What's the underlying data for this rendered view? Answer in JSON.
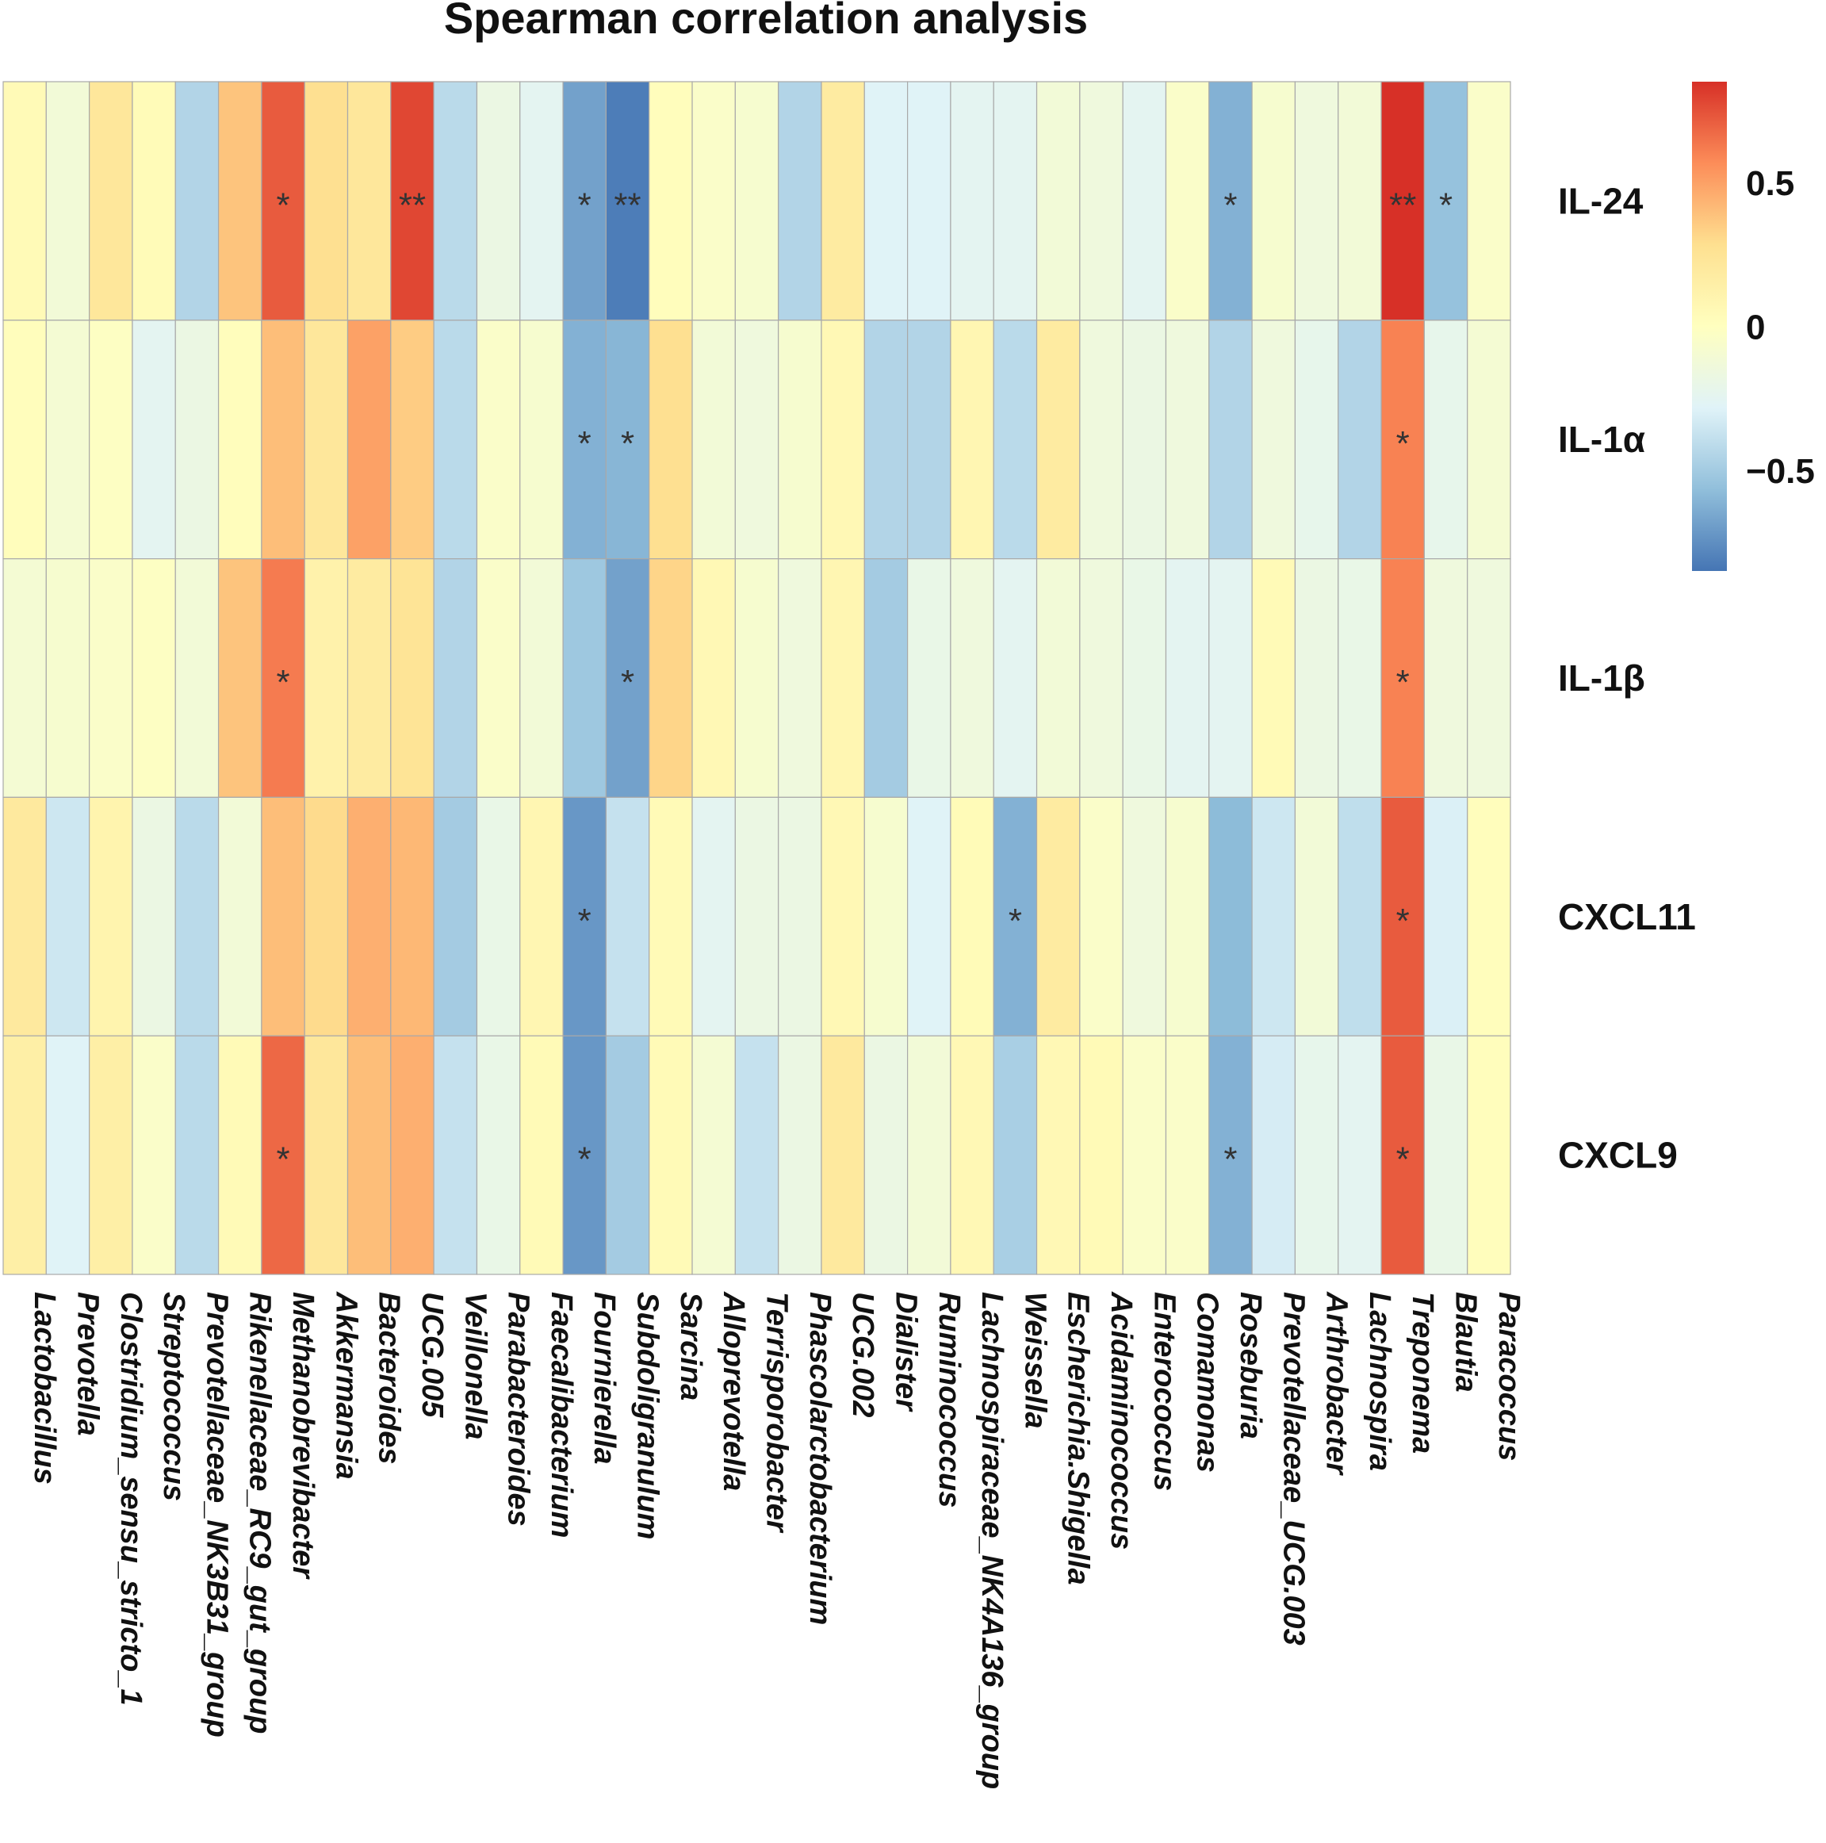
{
  "chart_data": {
    "type": "heatmap",
    "title": "Spearman correlation analysis",
    "rows": [
      "IL-24",
      "IL-1α",
      "IL-1β",
      "CXCL11",
      "CXCL9"
    ],
    "columns": [
      "Lactobacillus",
      "Prevotella",
      "Clostridium_sensu_stricto_1",
      "Streptococcus",
      "Prevotellaceae_NK3B31_group",
      "Rikenellaceae_RC9_gut_group",
      "Methanobrevibacter",
      "Akkermansia",
      "Bacteroides",
      "UCG.005",
      "Veillonella",
      "Parabacteroides",
      "Faecalibacterium",
      "Fournierella",
      "Subdoligranulum",
      "Sarcina",
      "Alloprevotella",
      "Terrisporobacter",
      "Phascolarctobacterium",
      "UCG.002",
      "Dialister",
      "Ruminococcus",
      "Lachnospiraceae_NK4A136_group",
      "Weissella",
      "Escherichia.Shigella",
      "Acidaminococcus",
      "Enterococcus",
      "Comamonas",
      "Roseburia",
      "Prevotellaceae_UCG.003",
      "Arthrobacter",
      "Lachnospira",
      "Treponema",
      "Blautia",
      "Paracoccus"
    ],
    "values": [
      [
        0.05,
        -0.12,
        0.22,
        0.04,
        -0.45,
        0.38,
        0.72,
        0.28,
        0.22,
        0.78,
        -0.42,
        -0.18,
        -0.25,
        -0.68,
        -0.82,
        0.02,
        -0.05,
        -0.08,
        -0.45,
        0.18,
        -0.28,
        -0.28,
        -0.25,
        -0.25,
        -0.12,
        -0.15,
        -0.25,
        -0.05,
        -0.62,
        -0.08,
        -0.15,
        -0.12,
        0.9,
        -0.55,
        -0.05
      ],
      [
        0.02,
        -0.1,
        -0.02,
        -0.25,
        -0.18,
        0.02,
        0.4,
        0.22,
        0.5,
        0.35,
        -0.42,
        -0.05,
        -0.08,
        -0.62,
        -0.6,
        0.28,
        -0.12,
        -0.15,
        -0.08,
        0.06,
        -0.45,
        -0.45,
        0.08,
        -0.42,
        0.18,
        -0.15,
        -0.18,
        -0.15,
        -0.45,
        -0.15,
        -0.22,
        -0.45,
        0.6,
        -0.22,
        -0.1
      ],
      [
        -0.1,
        -0.08,
        -0.05,
        -0.02,
        -0.12,
        0.38,
        0.62,
        0.12,
        0.18,
        0.25,
        -0.45,
        -0.05,
        -0.12,
        -0.52,
        -0.68,
        0.32,
        0.06,
        -0.08,
        -0.15,
        0.08,
        -0.5,
        -0.2,
        -0.15,
        -0.25,
        -0.12,
        -0.15,
        -0.2,
        -0.25,
        -0.25,
        0.05,
        -0.18,
        -0.2,
        0.6,
        -0.15,
        -0.15
      ],
      [
        0.2,
        -0.35,
        0.1,
        -0.18,
        -0.42,
        -0.12,
        0.4,
        0.3,
        0.45,
        0.42,
        -0.5,
        -0.2,
        0.08,
        -0.72,
        -0.38,
        0.05,
        -0.25,
        -0.18,
        -0.18,
        0.06,
        -0.08,
        -0.28,
        0.04,
        -0.62,
        0.18,
        -0.05,
        -0.15,
        -0.08,
        -0.58,
        -0.35,
        -0.12,
        -0.4,
        0.72,
        -0.3,
        0.02
      ],
      [
        0.15,
        -0.28,
        0.15,
        -0.05,
        -0.42,
        0.05,
        0.68,
        0.22,
        0.4,
        0.45,
        -0.38,
        -0.2,
        0.05,
        -0.72,
        -0.5,
        0.05,
        -0.1,
        -0.38,
        -0.18,
        0.2,
        -0.18,
        -0.12,
        0.06,
        -0.48,
        0.06,
        0.05,
        -0.05,
        -0.05,
        -0.62,
        -0.32,
        -0.22,
        -0.25,
        0.72,
        -0.2,
        0.02
      ]
    ],
    "significance": [
      [
        "",
        "",
        "",
        "",
        "",
        "",
        "*",
        "",
        "",
        "**",
        "",
        "",
        "",
        "*",
        "**",
        "",
        "",
        "",
        "",
        "",
        "",
        "",
        "",
        "",
        "",
        "",
        "",
        "",
        "*",
        "",
        "",
        "",
        "**",
        "*",
        ""
      ],
      [
        "",
        "",
        "",
        "",
        "",
        "",
        "",
        "",
        "",
        "",
        "",
        "",
        "",
        "*",
        "*",
        "",
        "",
        "",
        "",
        "",
        "",
        "",
        "",
        "",
        "",
        "",
        "",
        "",
        "",
        "",
        "",
        "",
        "*",
        "",
        ""
      ],
      [
        "",
        "",
        "",
        "",
        "",
        "",
        "*",
        "",
        "",
        "",
        "",
        "",
        "",
        "",
        "*",
        "",
        "",
        "",
        "",
        "",
        "",
        "",
        "",
        "",
        "",
        "",
        "",
        "",
        "",
        "",
        "",
        "",
        "*",
        "",
        ""
      ],
      [
        "",
        "",
        "",
        "",
        "",
        "",
        "",
        "",
        "",
        "",
        "",
        "",
        "",
        "*",
        "",
        "",
        "",
        "",
        "",
        "",
        "",
        "",
        "",
        "*",
        "",
        "",
        "",
        "",
        "",
        "",
        "",
        "",
        "*",
        "",
        ""
      ],
      [
        "",
        "",
        "",
        "",
        "",
        "",
        "*",
        "",
        "",
        "",
        "",
        "",
        "",
        "*",
        "",
        "",
        "",
        "",
        "",
        "",
        "",
        "",
        "",
        "",
        "",
        "",
        "",
        "",
        "*",
        "",
        "",
        "",
        "*",
        "",
        ""
      ]
    ],
    "color_scale": {
      "range": [
        -0.85,
        0.85
      ],
      "stops": [
        "#4575b4",
        "#91bfdb",
        "#e0f3f8",
        "#ffffbf",
        "#fee090",
        "#fc8d59",
        "#d73027"
      ]
    },
    "legend": {
      "position": "right",
      "ticks": [
        0.5,
        0,
        -0.5
      ],
      "tick_labels": [
        "0.5",
        "0",
        "−0.5"
      ]
    }
  }
}
